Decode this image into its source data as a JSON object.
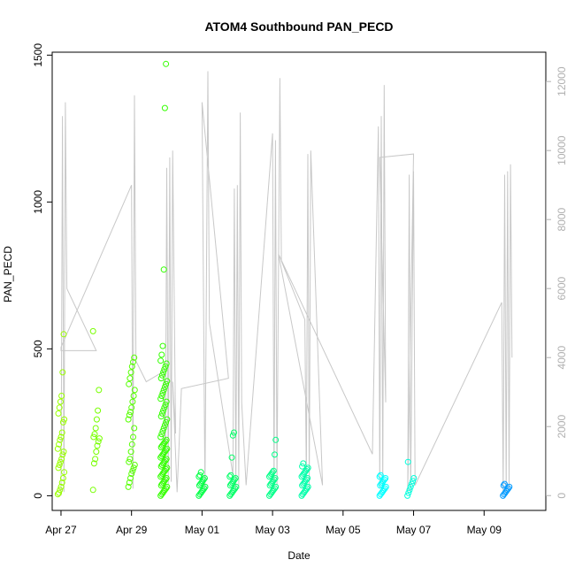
{
  "chart_data": {
    "type": "scatter",
    "title": "ATOM4 Southbound PAN_PECD",
    "xlabel": "Date",
    "ylabel": "PAN_PECD",
    "x_range": [
      "2016-04-26T18:00",
      "2016-05-10T18:00"
    ],
    "xticks": [
      {
        "date": "2016-04-27",
        "label": "Apr 27"
      },
      {
        "date": "2016-04-29",
        "label": "Apr 29"
      },
      {
        "date": "2016-05-01",
        "label": "May 01"
      },
      {
        "date": "2016-05-03",
        "label": "May 03"
      },
      {
        "date": "2016-05-05",
        "label": "May 05"
      },
      {
        "date": "2016-05-07",
        "label": "May 07"
      },
      {
        "date": "2016-05-09",
        "label": "May 09"
      }
    ],
    "ylim": [
      -50,
      1510
    ],
    "yticks": [
      "0",
      "500",
      "1000",
      "1500"
    ],
    "y2lim": [
      -430,
      12850
    ],
    "y2ticks": [
      "0",
      "2000",
      "4000",
      "6000",
      "8000",
      "10000",
      "12000"
    ],
    "grid": false,
    "colors": {
      "trace": "#c8c8c8",
      "right_axis": "#b0b0b0",
      "bursts": [
        "#99ff00",
        "#77ff00",
        "#55ff00",
        "#33ff00",
        "#00ff44",
        "#00ff66",
        "#00ff88",
        "#00ffaa",
        "#00ffff",
        "#00ffdd",
        "#0099ff"
      ]
    },
    "bursts": [
      {
        "x": "2016-04-27T00:00",
        "v": [
          5,
          10,
          20,
          30,
          45,
          60,
          80,
          95,
          105,
          115,
          125,
          140,
          150,
          160,
          175,
          190,
          200,
          215,
          250,
          260,
          280,
          300,
          320,
          340,
          420,
          550
        ]
      },
      {
        "x": "2016-04-28T00:00",
        "v": [
          20,
          110,
          125,
          150,
          170,
          185,
          195,
          200,
          210,
          230,
          260,
          290,
          360,
          560
        ]
      },
      {
        "x": "2016-04-29T00:00",
        "v": [
          30,
          45,
          60,
          75,
          85,
          95,
          105,
          115,
          125,
          150,
          175,
          200,
          230,
          260,
          275,
          285,
          300,
          320,
          340,
          360,
          380,
          400,
          420,
          440,
          455,
          470
        ]
      },
      {
        "x": "2016-04-29T22:00",
        "v": [
          0,
          5,
          10,
          15,
          20,
          25,
          30,
          35,
          40,
          45,
          50,
          55,
          60,
          65,
          70,
          75,
          80,
          85,
          90,
          95,
          100,
          105,
          110,
          115,
          120,
          125,
          130,
          135,
          140,
          145,
          150,
          155,
          160,
          165,
          170,
          175,
          180,
          185,
          190,
          200,
          210,
          220,
          230,
          240,
          250,
          260,
          270,
          280,
          290,
          300,
          310,
          320,
          330,
          340,
          350,
          360,
          370,
          380,
          390,
          400,
          410,
          420,
          430,
          440,
          450,
          460,
          480,
          510,
          770,
          1320,
          1470
        ]
      },
      {
        "x": "2016-05-01T00:00",
        "v": [
          0,
          5,
          10,
          15,
          20,
          25,
          30,
          35,
          40,
          45,
          50,
          55,
          60,
          65,
          70,
          80
        ]
      },
      {
        "x": "2016-05-01T21:00",
        "v": [
          0,
          5,
          10,
          15,
          20,
          25,
          30,
          35,
          40,
          45,
          50,
          55,
          60,
          65,
          70,
          130,
          205,
          215
        ]
      },
      {
        "x": "2016-05-03T00:00",
        "v": [
          0,
          5,
          10,
          15,
          20,
          25,
          30,
          35,
          40,
          45,
          50,
          55,
          60,
          65,
          70,
          75,
          80,
          85,
          140,
          190
        ]
      },
      {
        "x": "2016-05-03T22:00",
        "v": [
          0,
          5,
          10,
          15,
          20,
          25,
          30,
          35,
          40,
          45,
          50,
          55,
          60,
          65,
          70,
          75,
          80,
          85,
          90,
          95,
          100,
          110
        ]
      },
      {
        "x": "2016-05-06T03:00",
        "v": [
          0,
          5,
          10,
          15,
          20,
          25,
          30,
          35,
          40,
          45,
          50,
          55,
          60,
          65,
          70
        ]
      },
      {
        "x": "2016-05-06T22:00",
        "v": [
          0,
          10,
          20,
          30,
          40,
          50,
          60,
          115
        ]
      },
      {
        "x": "2016-05-09T15:00",
        "v": [
          0,
          5,
          10,
          15,
          20,
          25,
          30,
          35,
          40
        ]
      }
    ],
    "secondary_trace": {
      "axis": "right",
      "points": [
        [
          "2016-04-27T00:00",
          0
        ],
        [
          "2016-04-27T01:00",
          11000
        ],
        [
          "2016-04-27T02:00",
          100
        ],
        [
          "2016-04-27T03:00",
          11400
        ],
        [
          "2016-04-27T04:00",
          6000
        ],
        [
          "2016-04-28T00:00",
          4200
        ],
        [
          "2016-04-27T00:00",
          4200
        ],
        [
          "2016-04-27T00:00",
          4300
        ],
        [
          "2016-04-29T00:00",
          9000
        ],
        [
          "2016-04-29T01:00",
          200
        ],
        [
          "2016-04-29T02:00",
          11600
        ],
        [
          "2016-04-29T03:00",
          3900
        ],
        [
          "2016-04-29T10:00",
          3300
        ],
        [
          "2016-04-29T22:00",
          3600
        ],
        [
          "2016-04-29T23:00",
          200
        ],
        [
          "2016-04-30T00:00",
          9500
        ],
        [
          "2016-04-30T01:00",
          300
        ],
        [
          "2016-04-30T02:00",
          9800
        ],
        [
          "2016-04-30T03:00",
          400
        ],
        [
          "2016-04-30T04:00",
          10000
        ],
        [
          "2016-04-30T06:00",
          1800
        ],
        [
          "2016-04-30T04:00",
          3300
        ],
        [
          "2016-04-30T07:00",
          100
        ],
        [
          "2016-04-30T10:00",
          3100
        ],
        [
          "2016-05-01T18:00",
          3400
        ],
        [
          "2016-05-01T00:00",
          11400
        ],
        [
          "2016-05-01T02:00",
          100
        ],
        [
          "2016-05-01T04:00",
          12300
        ],
        [
          "2016-05-01T05:00",
          5000
        ],
        [
          "2016-05-01T21:00",
          600
        ],
        [
          "2016-05-01T22:00",
          8900
        ],
        [
          "2016-05-01T23:00",
          100
        ],
        [
          "2016-05-02T00:00",
          9000
        ],
        [
          "2016-05-02T01:00",
          200
        ],
        [
          "2016-05-02T02:00",
          11100
        ],
        [
          "2016-05-02T03:00",
          2700
        ],
        [
          "2016-05-02T06:00",
          300
        ],
        [
          "2016-05-03T00:00",
          10500
        ],
        [
          "2016-05-03T01:00",
          200
        ],
        [
          "2016-05-03T02:00",
          10300
        ],
        [
          "2016-05-03T03:00",
          300
        ],
        [
          "2016-05-03T05:00",
          12100
        ],
        [
          "2016-05-03T06:00",
          6800
        ],
        [
          "2016-05-03T22:00",
          5100
        ],
        [
          "2016-05-03T23:00",
          500
        ],
        [
          "2016-05-04T00:00",
          9900
        ],
        [
          "2016-05-04T01:00",
          200
        ],
        [
          "2016-05-04T02:00",
          10000
        ],
        [
          "2016-05-04T10:00",
          300
        ],
        [
          "2016-05-03T04:00",
          7000
        ],
        [
          "2016-05-05T20:00",
          1200
        ],
        [
          "2016-05-06T00:00",
          10700
        ],
        [
          "2016-05-06T01:00",
          200
        ],
        [
          "2016-05-06T02:00",
          11000
        ],
        [
          "2016-05-06T03:00",
          200
        ],
        [
          "2016-05-06T04:00",
          11900
        ],
        [
          "2016-05-06T05:00",
          2700
        ],
        [
          "2016-05-06T01:00",
          9800
        ],
        [
          "2016-05-07T00:00",
          9900
        ],
        [
          "2016-05-06T20:00",
          100
        ],
        [
          "2016-05-06T21:00",
          9300
        ],
        [
          "2016-05-06T22:00",
          100
        ],
        [
          "2016-05-07T00:00",
          9400
        ],
        [
          "2016-05-07T01:00",
          300
        ],
        [
          "2016-05-09T12:00",
          5600
        ],
        [
          "2016-05-09T13:00",
          100
        ],
        [
          "2016-05-09T14:00",
          9300
        ],
        [
          "2016-05-09T15:00",
          100
        ],
        [
          "2016-05-09T16:00",
          9400
        ],
        [
          "2016-05-09T17:00",
          200
        ],
        [
          "2016-05-09T18:00",
          9600
        ],
        [
          "2016-05-09T19:00",
          4000
        ]
      ]
    }
  }
}
